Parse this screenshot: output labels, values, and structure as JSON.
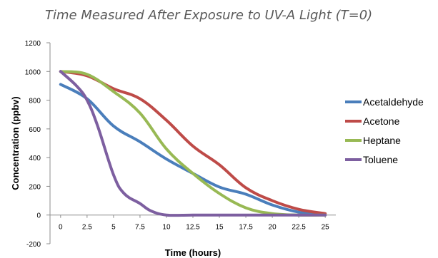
{
  "chart_data": {
    "type": "line",
    "title": "Time Measured After Exposure to UV-A Light (T=0)",
    "xlabel": "Time (hours)",
    "ylabel": "Concentration (ppbv)",
    "x_ticks": [
      "0",
      "2.5",
      "5",
      "7.5",
      "10",
      "12.5",
      "15",
      "17.5",
      "20",
      "22.5",
      "25"
    ],
    "y_ticks": [
      "-200",
      "0",
      "200",
      "400",
      "600",
      "800",
      "1000",
      "1200"
    ],
    "xlim": [
      -1,
      26
    ],
    "ylim": [
      -200,
      1200
    ],
    "grid": false,
    "legend_position": "right",
    "series": [
      {
        "name": "Acetaldehyde",
        "color": "#4a7ebb",
        "x": [
          0,
          2.5,
          5,
          7.5,
          10,
          12.5,
          15,
          17.5,
          20,
          22.5,
          25
        ],
        "values": [
          910,
          810,
          620,
          510,
          390,
          290,
          195,
          145,
          70,
          20,
          0
        ]
      },
      {
        "name": "Acetone",
        "color": "#be4b48",
        "x": [
          0,
          2.5,
          5,
          7.5,
          10,
          12.5,
          15,
          17.5,
          20,
          22.5,
          25
        ],
        "values": [
          1000,
          970,
          880,
          810,
          660,
          480,
          350,
          190,
          100,
          40,
          10
        ]
      },
      {
        "name": "Heptane",
        "color": "#98b954",
        "x": [
          0,
          2.5,
          5,
          7.5,
          10,
          12.5,
          15,
          17.5,
          20,
          22.5,
          25
        ],
        "values": [
          1000,
          980,
          860,
          710,
          460,
          290,
          150,
          50,
          10,
          0,
          0
        ]
      },
      {
        "name": "Toluene",
        "color": "#7d5fa0",
        "x": [
          0,
          1.5,
          2.5,
          3.5,
          5,
          6,
          7.5,
          8.5,
          10,
          12.5,
          15,
          17.5,
          20,
          22.5,
          25
        ],
        "values": [
          1000,
          900,
          800,
          620,
          280,
          150,
          80,
          30,
          0,
          0,
          0,
          0,
          0,
          0,
          0
        ]
      }
    ]
  }
}
